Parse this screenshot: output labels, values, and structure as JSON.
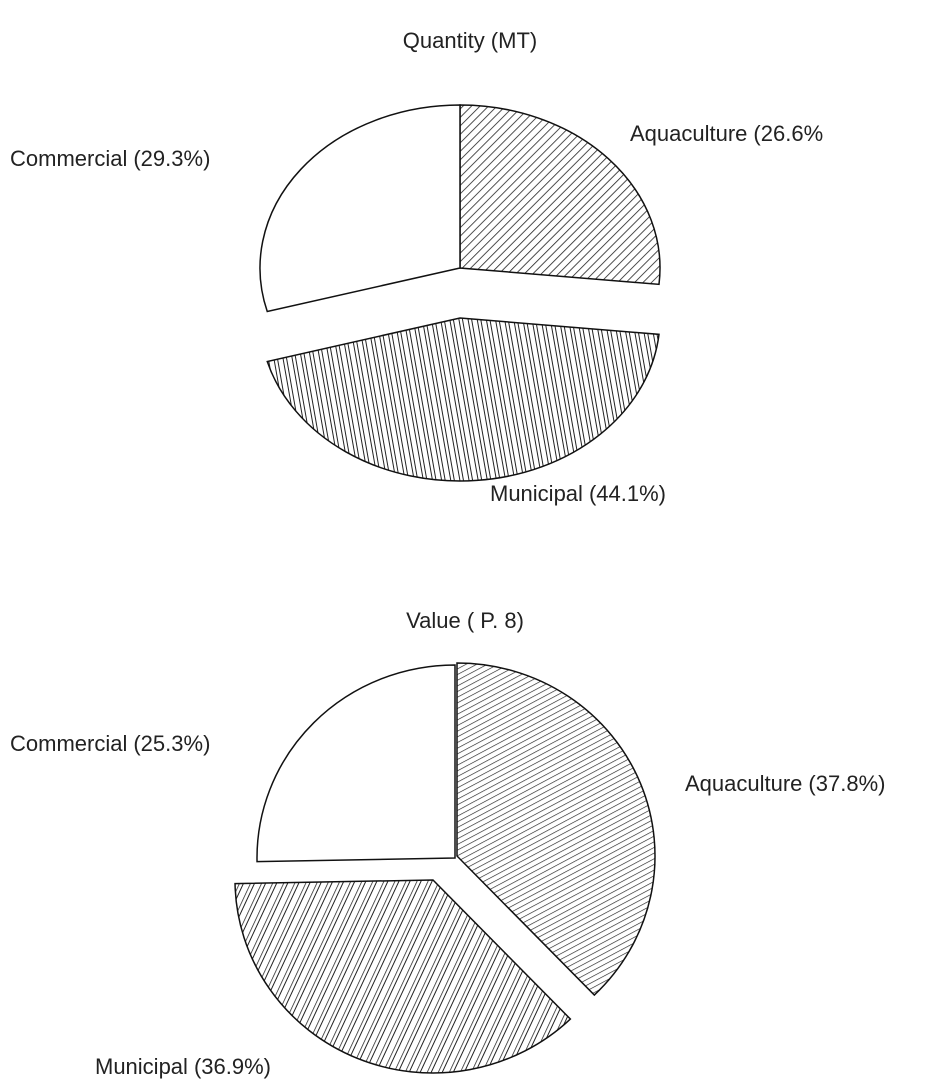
{
  "chart_data": [
    {
      "type": "pie",
      "title": "Quantity (MT)",
      "categories": [
        "Aquaculture",
        "Municipal",
        "Commercial"
      ],
      "values": [
        26.6,
        44.1,
        29.3
      ],
      "value_labels": [
        "(26.6%",
        "(44.1%)",
        "(29.3%)"
      ]
    },
    {
      "type": "pie",
      "title": "Value ( P. 8)",
      "categories": [
        "Aquaculture",
        "Municipal",
        "Commercial"
      ],
      "values": [
        37.8,
        36.9,
        25.3
      ],
      "value_labels": [
        "(37.8%)",
        "(36.9%)",
        "(25.3%)"
      ]
    }
  ]
}
